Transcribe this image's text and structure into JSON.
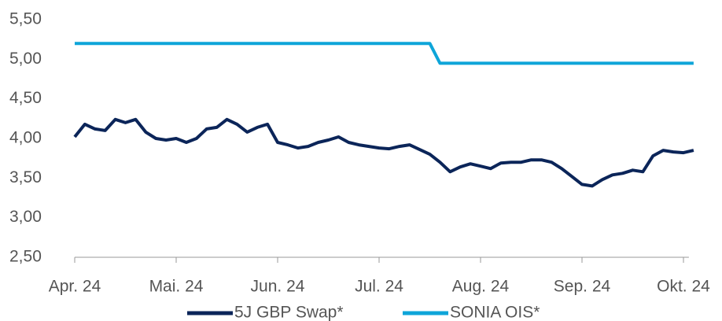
{
  "chart_data": {
    "type": "line",
    "categories": [
      "Apr. 24",
      null,
      null,
      null,
      null,
      null,
      null,
      null,
      null,
      null,
      "Mai. 24",
      null,
      null,
      null,
      null,
      null,
      null,
      null,
      null,
      null,
      "Jun. 24",
      null,
      null,
      null,
      null,
      null,
      null,
      null,
      null,
      null,
      "Jul. 24",
      null,
      null,
      null,
      null,
      null,
      null,
      null,
      null,
      null,
      "Aug. 24",
      null,
      null,
      null,
      null,
      null,
      null,
      null,
      null,
      null,
      "Sep. 24",
      null,
      null,
      null,
      null,
      null,
      null,
      null,
      null,
      null,
      "Okt. 24",
      null
    ],
    "series": [
      {
        "name": "5J GBP Swap*",
        "color": "#0b2559",
        "values": [
          4.02,
          4.18,
          4.12,
          4.1,
          4.24,
          4.2,
          4.24,
          4.08,
          4.0,
          3.98,
          4.0,
          3.95,
          4.0,
          4.12,
          4.14,
          4.24,
          4.18,
          4.08,
          4.14,
          4.18,
          3.95,
          3.92,
          3.88,
          3.9,
          3.95,
          3.98,
          4.02,
          3.95,
          3.92,
          3.9,
          3.88,
          3.87,
          3.9,
          3.92,
          3.86,
          3.8,
          3.7,
          3.58,
          3.64,
          3.68,
          3.65,
          3.62,
          3.69,
          3.7,
          3.7,
          3.73,
          3.73,
          3.7,
          3.62,
          3.52,
          3.42,
          3.4,
          3.48,
          3.54,
          3.56,
          3.6,
          3.58,
          3.78,
          3.85,
          3.83,
          3.82,
          3.85
        ]
      },
      {
        "name": "SONIA OIS*",
        "color": "#0ea5d9",
        "values": [
          5.2,
          5.2,
          5.2,
          5.2,
          5.2,
          5.2,
          5.2,
          5.2,
          5.2,
          5.2,
          5.2,
          5.2,
          5.2,
          5.2,
          5.2,
          5.2,
          5.2,
          5.2,
          5.2,
          5.2,
          5.2,
          5.2,
          5.2,
          5.2,
          5.2,
          5.2,
          5.2,
          5.2,
          5.2,
          5.2,
          5.2,
          5.2,
          5.2,
          5.2,
          5.2,
          5.2,
          4.95,
          4.95,
          4.95,
          4.95,
          4.95,
          4.95,
          4.95,
          4.95,
          4.95,
          4.95,
          4.95,
          4.95,
          4.95,
          4.95,
          4.95,
          4.95,
          4.95,
          4.95,
          4.95,
          4.95,
          4.95,
          4.95,
          4.95,
          4.95,
          4.95,
          4.95
        ]
      }
    ],
    "ylim": [
      2.5,
      5.5
    ],
    "yticks": [
      {
        "value": 2.5,
        "label": "2,50"
      },
      {
        "value": 3,
        "label": "3,00"
      },
      {
        "value": 3.5,
        "label": "3,50"
      },
      {
        "value": 4,
        "label": "4,00"
      },
      {
        "value": 4.5,
        "label": "4,50"
      },
      {
        "value": 5,
        "label": "5,00"
      },
      {
        "value": 5.5,
        "label": "5,50"
      }
    ],
    "grid": false,
    "legend": "bottom"
  }
}
